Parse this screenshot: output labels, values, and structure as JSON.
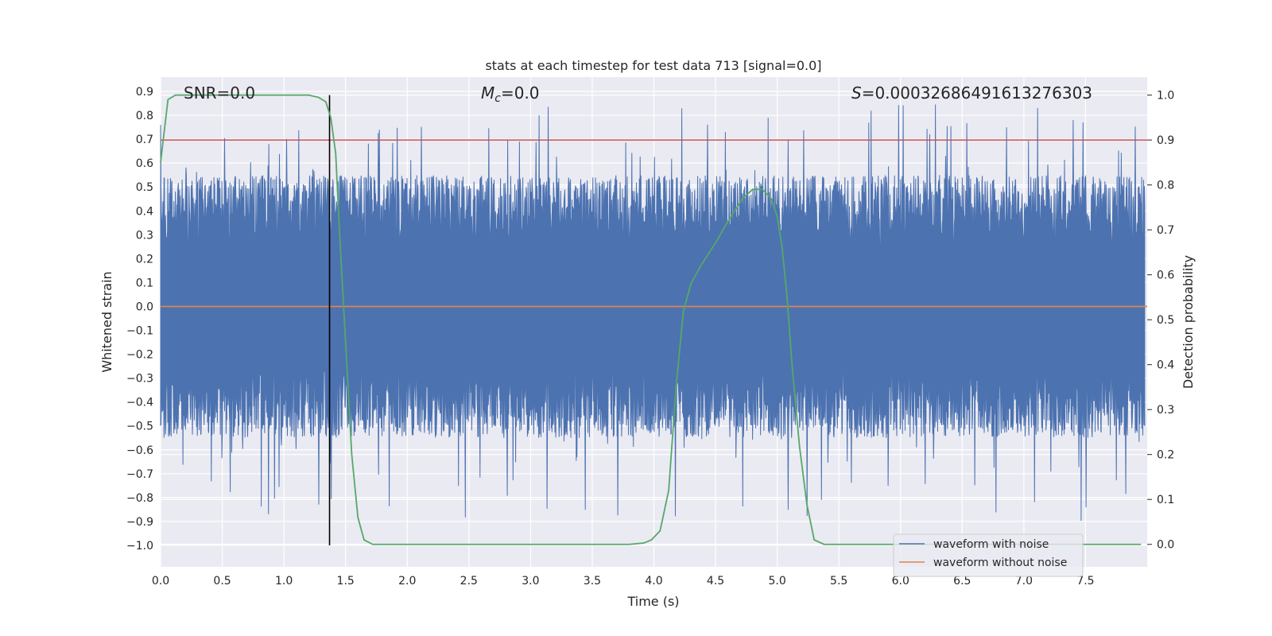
{
  "chart_data": {
    "type": "line",
    "title": "stats at each timestep for test data 713 [signal=0.0]",
    "xlabel": "Time (s)",
    "ylabel": "Whitened strain",
    "y2label": "Detection probability",
    "xlim": [
      0.0,
      8.0
    ],
    "ylim": [
      -1.09,
      0.96
    ],
    "y2lim": [
      -0.05,
      1.04
    ],
    "x_ticks": [
      "0.0",
      "0.5",
      "1.0",
      "1.5",
      "2.0",
      "2.5",
      "3.0",
      "3.5",
      "4.0",
      "4.5",
      "5.0",
      "5.5",
      "6.0",
      "6.5",
      "7.0",
      "7.5"
    ],
    "y_ticks": [
      "0.9",
      "0.8",
      "0.7",
      "0.6",
      "0.5",
      "0.4",
      "0.3",
      "0.2",
      "0.1",
      "0.0",
      "−0.1",
      "−0.2",
      "−0.3",
      "−0.4",
      "−0.5",
      "−0.6",
      "−0.7",
      "−0.8",
      "−0.9",
      "−1.0"
    ],
    "y2_ticks": [
      "1.0",
      "0.9",
      "0.8",
      "0.7",
      "0.6",
      "0.5",
      "0.4",
      "0.3",
      "0.2",
      "0.1",
      "0.0"
    ],
    "grid": true,
    "annotations": {
      "snr": "SNR=0.0",
      "mc_symbol": "M",
      "mc_sub": "c",
      "mc_value": "=0.0",
      "s_symbol": "S",
      "s_value": "=0.00032686491613276303"
    },
    "threshold_y2": 0.9,
    "vline_x": 1.37,
    "series": [
      {
        "name": "waveform with noise",
        "color": "#4c72b0",
        "description_axis": "left",
        "amplitude_envelope": 0.55,
        "spike_max": [
          0.87,
          -0.99
        ]
      },
      {
        "name": "waveform without noise",
        "color": "#dd8452",
        "description_axis": "left",
        "x": [
          0.0,
          8.0
        ],
        "y": [
          0.0,
          0.0
        ]
      },
      {
        "name": "",
        "color": "#55a868",
        "description_axis": "right",
        "x": [
          0.0,
          0.06,
          0.12,
          0.3,
          0.6,
          0.9,
          1.1,
          1.2,
          1.28,
          1.34,
          1.38,
          1.42,
          1.45,
          1.5,
          1.55,
          1.6,
          1.65,
          1.72,
          1.9,
          2.5,
          3.0,
          3.5,
          3.8,
          3.92,
          3.98,
          4.05,
          4.12,
          4.18,
          4.24,
          4.3,
          4.38,
          4.45,
          4.52,
          4.58,
          4.65,
          4.72,
          4.8,
          4.88,
          4.95,
          5.0,
          5.04,
          5.08,
          5.12,
          5.18,
          5.24,
          5.3,
          5.38,
          5.6,
          6.0,
          6.5,
          7.0,
          7.5,
          7.95
        ],
        "y": [
          0.85,
          0.99,
          1.0,
          1.0,
          1.0,
          1.0,
          1.0,
          1.0,
          0.995,
          0.985,
          0.95,
          0.87,
          0.7,
          0.45,
          0.2,
          0.06,
          0.01,
          0.0,
          0.0,
          0.0,
          0.0,
          0.0,
          0.0,
          0.003,
          0.01,
          0.03,
          0.12,
          0.35,
          0.52,
          0.58,
          0.62,
          0.65,
          0.68,
          0.71,
          0.74,
          0.77,
          0.79,
          0.79,
          0.77,
          0.73,
          0.66,
          0.55,
          0.4,
          0.22,
          0.09,
          0.01,
          0.0,
          0.0,
          0.0,
          0.0,
          0.0,
          0.0,
          0.0
        ]
      }
    ],
    "threshold_color": "#c44e52",
    "legend_location": "lower right"
  }
}
